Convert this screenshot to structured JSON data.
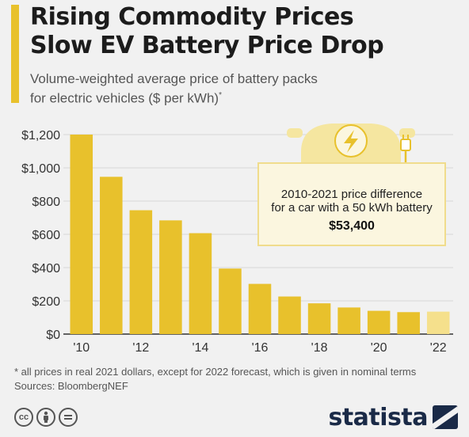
{
  "header": {
    "title_line1": "Rising Commodity Prices",
    "title_line2": "Slow EV Battery Price Drop",
    "subtitle_line1": "Volume-weighted average price of battery packs",
    "subtitle_line2": "for electric vehicles ($ per kWh)",
    "subtitle_mark": "*"
  },
  "colors": {
    "accent": "#e8c12c",
    "bar": "#e8c12c",
    "forecast_bar": "#f5e08c",
    "callout_border": "#f0dc8c",
    "callout_bg": "#fbf6df",
    "brand": "#1a2a47"
  },
  "chart_data": {
    "type": "bar",
    "categories": [
      "2010",
      "2011",
      "2012",
      "2013",
      "2014",
      "2015",
      "2016",
      "2017",
      "2018",
      "2019",
      "2020",
      "2021",
      "2022"
    ],
    "values": [
      1200,
      946,
      745,
      684,
      607,
      394,
      302,
      226,
      185,
      160,
      140,
      132,
      135
    ],
    "forecast_from_index": 12,
    "x_tick_labels": [
      {
        "index": 0,
        "label": "'10"
      },
      {
        "index": 2,
        "label": "'12"
      },
      {
        "index": 4,
        "label": "'14"
      },
      {
        "index": 6,
        "label": "'16"
      },
      {
        "index": 8,
        "label": "'18"
      },
      {
        "index": 10,
        "label": "'20"
      },
      {
        "index": 12,
        "label": "'22"
      }
    ],
    "y_ticks": [
      0,
      200,
      400,
      600,
      800,
      1000,
      1200
    ],
    "y_tick_labels": [
      "$0",
      "$200",
      "$400",
      "$600",
      "$800",
      "$1,000",
      "$1,200"
    ],
    "ylim": [
      0,
      1200
    ],
    "grid": true
  },
  "callout": {
    "line1": "2010-2021 price difference",
    "line2": "for a car with a 50 kWh battery",
    "value": "$53,400",
    "icon": "electric-car-plug-icon"
  },
  "footer": {
    "footnote": "* all prices in real 2021 dollars, except for 2022 forecast, which is given in nominal terms",
    "sources": "Sources: BloombergNEF",
    "license_icons": [
      "creative-commons-icon",
      "attribution-icon",
      "no-derivatives-icon"
    ],
    "brand": "statista"
  }
}
